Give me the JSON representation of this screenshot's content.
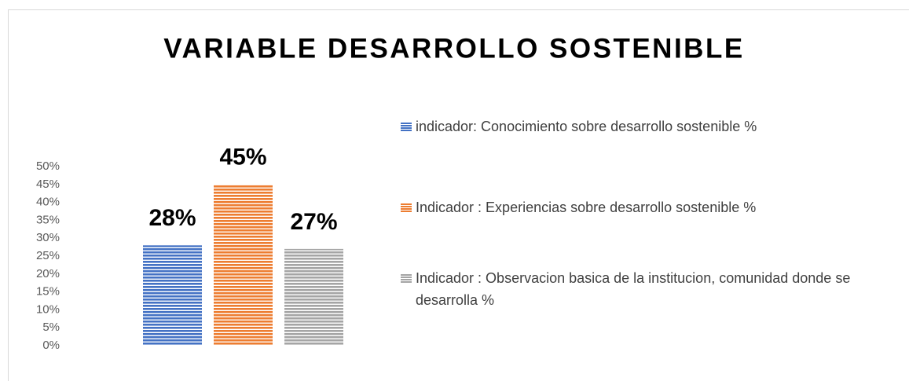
{
  "chart_data": {
    "type": "bar",
    "title": "VARIABLE DESARROLLO SOSTENIBLE",
    "categories": [
      null
    ],
    "series": [
      {
        "name": "indicador: Conocimiento sobre desarrollo sostenible %",
        "color": "#4472c4",
        "values": [
          28
        ],
        "value_labels": [
          "28%"
        ]
      },
      {
        "name": "Indicador : Experiencias sobre desarrollo sostenible %",
        "color": "#ed7d31",
        "values": [
          45
        ],
        "value_labels": [
          "45%"
        ]
      },
      {
        "name": "Indicador : Observacion basica de la institucion, comunidad donde se desarrolla %",
        "color": "#a5a5a5",
        "values": [
          27
        ],
        "value_labels": [
          "27%"
        ]
      }
    ],
    "ylim": [
      0,
      50
    ],
    "yticks": [
      {
        "value": 0,
        "label": "0%"
      },
      {
        "value": 5,
        "label": "5%"
      },
      {
        "value": 10,
        "label": "10%"
      },
      {
        "value": 15,
        "label": "15%"
      },
      {
        "value": 20,
        "label": "20%"
      },
      {
        "value": 25,
        "label": "25%"
      },
      {
        "value": 30,
        "label": "30%"
      },
      {
        "value": 35,
        "label": "35%"
      },
      {
        "value": 40,
        "label": "40%"
      },
      {
        "value": 45,
        "label": "45%"
      },
      {
        "value": 50,
        "label": "50%"
      }
    ],
    "grid": false,
    "legend": "right"
  }
}
